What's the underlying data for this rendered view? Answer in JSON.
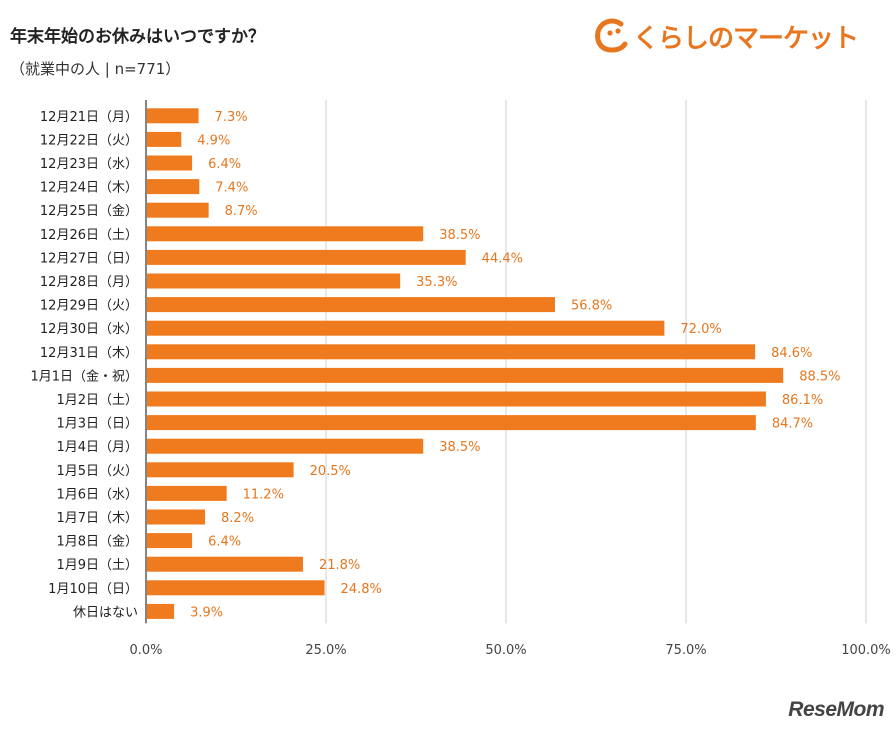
{
  "header": {
    "title": "年末年始のお休みはいつですか？",
    "subtitle": "（就業中の人 | n=771）"
  },
  "logo": {
    "text": "くらしのマーケット",
    "icon": "kurashi-logo-icon"
  },
  "watermark": {
    "text": "ReseMom"
  },
  "colors": {
    "bar": "#f07a1e",
    "value_label": "#e8761e",
    "grid": "#d9d9d9",
    "axis": "#333333"
  },
  "chart_data": {
    "type": "bar",
    "orientation": "horizontal",
    "title": "年末年始のお休みはいつですか？",
    "subtitle": "（就業中の人 | n=771）",
    "categories": [
      "12月21日（月）",
      "12月22日（火）",
      "12月23日（水）",
      "12月24日（木）",
      "12月25日（金）",
      "12月26日（土）",
      "12月27日（日）",
      "12月28日（月）",
      "12月29日（火）",
      "12月30日（水）",
      "12月31日（木）",
      "1月1日（金・祝）",
      "1月2日（土）",
      "1月3日（日）",
      "1月4日（月）",
      "1月5日（火）",
      "1月6日（水）",
      "1月7日（木）",
      "1月8日（金）",
      "1月9日（土）",
      "1月10日（日）",
      "休日はない"
    ],
    "values": [
      7.3,
      4.9,
      6.4,
      7.4,
      8.7,
      38.5,
      44.4,
      35.3,
      56.8,
      72.0,
      84.6,
      88.5,
      86.1,
      84.7,
      38.5,
      20.5,
      11.2,
      8.2,
      6.4,
      21.8,
      24.8,
      3.9
    ],
    "value_labels": [
      "7.3%",
      "4.9%",
      "6.4%",
      "7.4%",
      "8.7%",
      "38.5%",
      "44.4%",
      "35.3%",
      "56.8%",
      "72.0%",
      "84.6%",
      "88.5%",
      "86.1%",
      "84.7%",
      "38.5%",
      "20.5%",
      "11.2%",
      "8.2%",
      "6.4%",
      "21.8%",
      "24.8%",
      "3.9%"
    ],
    "xlim": [
      0,
      100
    ],
    "xticks": [
      0,
      25,
      50,
      75,
      100
    ],
    "xtick_labels": [
      "0.0%",
      "25.0%",
      "50.0%",
      "75.0%",
      "100.0%"
    ],
    "xlabel": "",
    "ylabel": "",
    "grid": true
  }
}
